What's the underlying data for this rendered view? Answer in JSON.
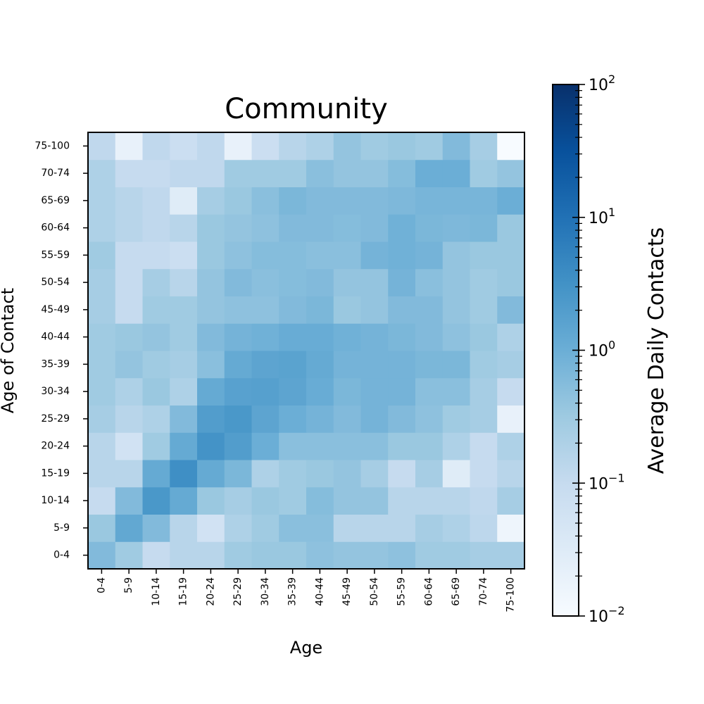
{
  "chart_data": {
    "type": "heatmap",
    "title": "Community",
    "xlabel": "Age",
    "ylabel": "Age of Contact",
    "x_categories": [
      "0-4",
      "5-9",
      "10-14",
      "15-19",
      "20-24",
      "25-29",
      "30-34",
      "35-39",
      "40-44",
      "45-49",
      "50-54",
      "55-59",
      "60-64",
      "65-69",
      "70-74",
      "75-100"
    ],
    "y_categories": [
      "0-4",
      "5-9",
      "10-14",
      "15-19",
      "20-24",
      "25-29",
      "30-34",
      "35-39",
      "40-44",
      "45-49",
      "50-54",
      "55-59",
      "60-64",
      "65-69",
      "70-74",
      "75-100"
    ],
    "color_scale": "log",
    "colormap": "Blues",
    "vmin": 0.01,
    "vmax": 100,
    "colorbar": {
      "label": "Average Daily Contacts",
      "ticks": [
        {
          "base": "10",
          "exp": "2",
          "value": 100
        },
        {
          "base": "10",
          "exp": "1",
          "value": 10
        },
        {
          "base": "10",
          "exp": "0",
          "value": 1
        },
        {
          "base": "10",
          "exp": "−1",
          "value": 0.1
        },
        {
          "base": "10",
          "exp": "−2",
          "value": 0.01
        }
      ]
    },
    "values": [
      [
        0.6,
        0.3,
        0.1,
        0.15,
        0.15,
        0.3,
        0.35,
        0.35,
        0.45,
        0.4,
        0.4,
        0.45,
        0.3,
        0.3,
        0.25,
        0.25
      ],
      [
        0.35,
        1.3,
        0.6,
        0.15,
        0.06,
        0.2,
        0.3,
        0.5,
        0.5,
        0.15,
        0.15,
        0.15,
        0.25,
        0.2,
        0.13,
        0.015
      ],
      [
        0.1,
        0.6,
        2.5,
        1.2,
        0.35,
        0.25,
        0.35,
        0.3,
        0.55,
        0.4,
        0.4,
        0.15,
        0.15,
        0.15,
        0.12,
        0.25
      ],
      [
        0.15,
        0.15,
        1.2,
        3.5,
        1.2,
        0.7,
        0.2,
        0.3,
        0.35,
        0.4,
        0.25,
        0.1,
        0.25,
        0.03,
        0.1,
        0.15
      ],
      [
        0.15,
        0.06,
        0.3,
        1.2,
        3.0,
        2.0,
        1.0,
        0.5,
        0.5,
        0.5,
        0.5,
        0.35,
        0.35,
        0.2,
        0.1,
        0.2
      ],
      [
        0.25,
        0.15,
        0.2,
        0.6,
        2.0,
        2.5,
        1.5,
        1.0,
        0.8,
        0.6,
        0.8,
        0.6,
        0.45,
        0.3,
        0.25,
        0.02
      ],
      [
        0.3,
        0.2,
        0.35,
        0.2,
        1.2,
        1.7,
        1.8,
        1.5,
        1.1,
        0.7,
        0.8,
        0.8,
        0.5,
        0.5,
        0.25,
        0.1
      ],
      [
        0.3,
        0.4,
        0.3,
        0.25,
        0.5,
        1.2,
        1.5,
        1.6,
        1.2,
        0.8,
        0.8,
        0.8,
        0.7,
        0.7,
        0.3,
        0.25
      ],
      [
        0.3,
        0.35,
        0.4,
        0.3,
        0.6,
        0.8,
        0.9,
        1.1,
        1.1,
        0.9,
        0.8,
        0.7,
        0.6,
        0.45,
        0.35,
        0.2
      ],
      [
        0.25,
        0.1,
        0.3,
        0.3,
        0.4,
        0.45,
        0.45,
        0.6,
        0.7,
        0.35,
        0.4,
        0.6,
        0.6,
        0.4,
        0.3,
        0.6
      ],
      [
        0.25,
        0.1,
        0.25,
        0.15,
        0.4,
        0.6,
        0.5,
        0.55,
        0.6,
        0.4,
        0.4,
        0.8,
        0.5,
        0.4,
        0.3,
        0.35
      ],
      [
        0.3,
        0.1,
        0.1,
        0.08,
        0.35,
        0.45,
        0.55,
        0.55,
        0.5,
        0.5,
        0.8,
        0.9,
        0.8,
        0.4,
        0.35,
        0.35
      ],
      [
        0.2,
        0.15,
        0.12,
        0.15,
        0.35,
        0.4,
        0.45,
        0.6,
        0.6,
        0.55,
        0.6,
        0.9,
        0.7,
        0.65,
        0.7,
        0.35
      ],
      [
        0.2,
        0.15,
        0.12,
        0.03,
        0.25,
        0.35,
        0.5,
        0.7,
        0.6,
        0.6,
        0.6,
        0.65,
        0.75,
        0.75,
        0.75,
        1.0
      ],
      [
        0.2,
        0.1,
        0.1,
        0.12,
        0.12,
        0.3,
        0.3,
        0.3,
        0.5,
        0.4,
        0.4,
        0.55,
        1.0,
        1.0,
        0.3,
        0.4
      ],
      [
        0.12,
        0.02,
        0.12,
        0.08,
        0.12,
        0.02,
        0.08,
        0.15,
        0.2,
        0.4,
        0.3,
        0.35,
        0.3,
        0.6,
        0.25,
        0.01
      ]
    ]
  }
}
